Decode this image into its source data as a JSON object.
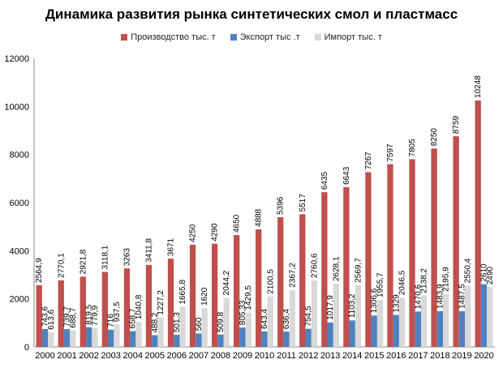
{
  "chart_data": {
    "type": "bar",
    "title": "Динамика развития рынка синтетических смол и пластмасс",
    "xlabel": "",
    "ylabel": "",
    "ylim": [
      0,
      12000
    ],
    "yticks": [
      0,
      2000,
      4000,
      6000,
      8000,
      10000,
      12000
    ],
    "categories": [
      "2000",
      "2001",
      "2002",
      "2003",
      "2004",
      "2005",
      "2006",
      "2007",
      "2008",
      "2009",
      "2010",
      "2011",
      "2012",
      "2013",
      "2014",
      "2015",
      "2016",
      "2017",
      "2018",
      "2019",
      "2020"
    ],
    "series": [
      {
        "name": "Производство тыс. т",
        "color": "#c0504d",
        "values": [
          2564.9,
          2770.1,
          2921.8,
          3118.1,
          3263,
          3411.8,
          3671,
          4250,
          4290,
          4650,
          4888,
          5396,
          5517,
          6435,
          6643,
          7267,
          7597,
          7805,
          8250,
          8759,
          10248
        ],
        "labels": [
          "2564,9",
          "2770,1",
          "2921,8",
          "3118,1",
          "3263",
          "3411,8",
          "3671",
          "4250",
          "4290",
          "4650",
          "4888",
          "5396",
          "5517",
          "6435",
          "6643",
          "7267",
          "7597",
          "7805",
          "8250",
          "8759",
          "10248"
        ]
      },
      {
        "name": "Экспорт тыс .т",
        "color": "#4f81bd",
        "values": [
          743.6,
          739.7,
          819.5,
          716,
          658.7,
          488.2,
          501.3,
          560,
          509.8,
          805.33,
          643.4,
          636.4,
          754.5,
          1017.9,
          1103.2,
          1306.6,
          1329,
          1470.6,
          1483.9,
          1487.5,
          2610
        ],
        "labels": [
          "743,6",
          "739,7",
          "819,5",
          "716",
          "658,7",
          "488,2",
          "501,3",
          "560",
          "509,8",
          "805,33",
          "643,4",
          "636,4",
          "754,5",
          "1017,9",
          "1103,2",
          "1306,6",
          "1329",
          "1470,6",
          "1483,9",
          "1487,5",
          "2610"
        ]
      },
      {
        "name": "Импорт тыс. т",
        "color": "#d9d9d9",
        "values": [
          613.6,
          688.7,
          779.9,
          937.5,
          1040.8,
          1227.2,
          1665.8,
          1620,
          2044.2,
          1429.5,
          2100.5,
          2367.2,
          2760.6,
          2628.1,
          2569.7,
          1955.7,
          2046.5,
          2138.2,
          2195.9,
          2550.4,
          2490
        ],
        "labels": [
          "613,6",
          "688,7",
          "779,9",
          "937,5",
          "1040,8",
          "1227,2",
          "1665,8",
          "1620",
          "2044,2",
          "1429,5",
          "2100,5",
          "2367,2",
          "2760,6",
          "2628,1",
          "2569,7",
          "1955,7",
          "2046,5",
          "2138,2",
          "2195,9",
          "2550,4",
          "2490"
        ]
      }
    ]
  }
}
